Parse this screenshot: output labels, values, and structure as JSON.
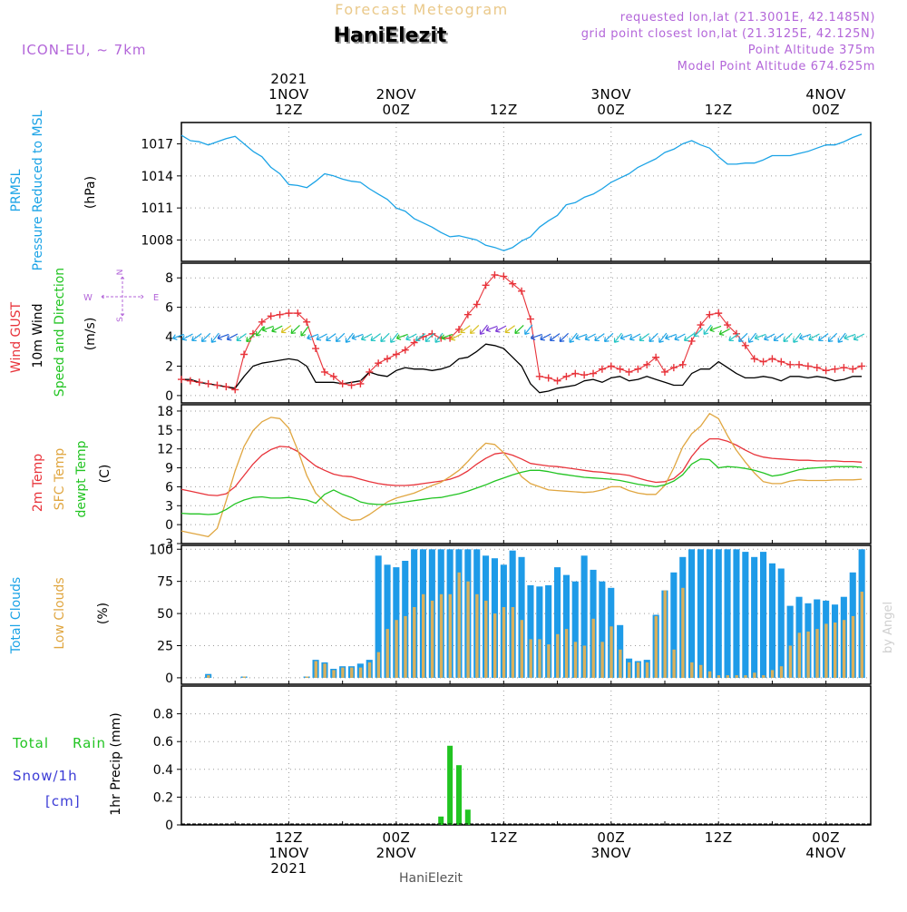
{
  "header": {
    "product_title": "Forecast Meteogram",
    "location_name": "HaniElezit",
    "model_name": "ICON-EU, ~ 7km",
    "requested_point": "requested lon,lat (21.3001E, 42.1485N)",
    "grid_point": "grid point closest lon,lat (21.3125E, 42.125N)",
    "point_altitude": "Point Altitude 375m",
    "model_altitude": "Model Point Altitude 674.625m",
    "watermark": "by Angel",
    "footer_location": "HaniElezit"
  },
  "colors": {
    "pressure": "#1ba3e6",
    "gust": "#e8333a",
    "wind": "#000000",
    "temp2m": "#e8333a",
    "sfctemp": "#e0a640",
    "dewpt": "#22c422",
    "total_cloud": "#1e9be8",
    "low_cloud": "#d9b05c",
    "rain": "#22c422",
    "snow": "#3b3bd6",
    "purple": "#b366d9"
  },
  "time_axis": {
    "top_labels": [
      {
        "t": 12,
        "lines": [
          "2021",
          "1NOV",
          "12Z"
        ]
      },
      {
        "t": 24,
        "lines": [
          "2NOV",
          "00Z"
        ]
      },
      {
        "t": 36,
        "lines": [
          "12Z"
        ]
      },
      {
        "t": 48,
        "lines": [
          "3NOV",
          "00Z"
        ]
      },
      {
        "t": 60,
        "lines": [
          "12Z"
        ]
      },
      {
        "t": 72,
        "lines": [
          "4NOV",
          "00Z"
        ]
      }
    ],
    "bottom_labels": [
      {
        "t": 12,
        "lines": [
          "12Z",
          "1NOV",
          "2021"
        ]
      },
      {
        "t": 24,
        "lines": [
          "00Z",
          "2NOV"
        ]
      },
      {
        "t": 36,
        "lines": [
          "12Z"
        ]
      },
      {
        "t": 48,
        "lines": [
          "00Z",
          "3NOV"
        ]
      },
      {
        "t": 60,
        "lines": [
          "12Z"
        ]
      },
      {
        "t": 72,
        "lines": [
          "00Z",
          "4NOV"
        ]
      }
    ]
  },
  "panels": {
    "pressure": {
      "labels": [
        {
          "text": "PRMSL",
          "color": "#1ba3e6"
        },
        {
          "text": "Pressure Reduced to MSL",
          "color": "#1ba3e6"
        },
        {
          "text": "(hPa)",
          "color": "#000000"
        }
      ]
    },
    "wind": {
      "labels": [
        {
          "text": "Wind GUST",
          "color": "#e8333a"
        },
        {
          "text": "10m Wind",
          "color": "#000000"
        },
        {
          "text": "Speed and Direction",
          "color": "#22c422"
        },
        {
          "text": "(m/s)",
          "color": "#000000"
        }
      ],
      "compass": {
        "n": "N",
        "s": "S",
        "w": "W",
        "e": "E"
      }
    },
    "temp": {
      "labels": [
        {
          "text": "2m Temp",
          "color": "#e8333a"
        },
        {
          "text": "SFC Temp",
          "color": "#e0a640"
        },
        {
          "text": "dewpt Temp",
          "color": "#22c422"
        },
        {
          "text": "(C)",
          "color": "#000000"
        }
      ]
    },
    "cloud": {
      "labels": [
        {
          "text": "Total Clouds",
          "color": "#1ba3e6"
        },
        {
          "text": "Low Clouds",
          "color": "#e0a640"
        },
        {
          "text": "(%)",
          "color": "#000000"
        }
      ]
    },
    "precip": {
      "axis_label": "1hr Precip (mm)",
      "legend_total": "Total",
      "legend_rain": "Rain",
      "legend_snow": "Snow/1h",
      "legend_unit": "[cm]"
    }
  },
  "chart_data": [
    {
      "type": "line",
      "name": "pressure",
      "x_unit": "hours after 1NOV 00Z",
      "xlim": [
        0,
        77
      ],
      "ylim": [
        1006,
        1019
      ],
      "yticks": [
        1008,
        1011,
        1014,
        1017
      ],
      "x": [
        0,
        1,
        2,
        3,
        4,
        5,
        6,
        7,
        8,
        9,
        10,
        11,
        12,
        13,
        14,
        15,
        16,
        17,
        18,
        19,
        20,
        21,
        22,
        23,
        24,
        25,
        26,
        27,
        28,
        29,
        30,
        31,
        32,
        33,
        34,
        35,
        36,
        37,
        38,
        39,
        40,
        41,
        42,
        43,
        44,
        45,
        46,
        47,
        48,
        49,
        50,
        51,
        52,
        53,
        54,
        55,
        56,
        57,
        58,
        59,
        60,
        61,
        62,
        63,
        64,
        65,
        66,
        67,
        68,
        69,
        70,
        71,
        72,
        73,
        74,
        75,
        76
      ],
      "y": [
        1017.8,
        1017.3,
        1017.2,
        1016.9,
        1017.2,
        1017.5,
        1017.7,
        1017.0,
        1016.3,
        1015.8,
        1014.8,
        1014.2,
        1013.2,
        1013.1,
        1012.9,
        1013.5,
        1014.2,
        1014.0,
        1013.7,
        1013.5,
        1013.4,
        1012.8,
        1012.3,
        1011.8,
        1011.0,
        1010.7,
        1010.0,
        1009.6,
        1009.2,
        1008.7,
        1008.3,
        1008.4,
        1008.2,
        1008.0,
        1007.5,
        1007.3,
        1007.0,
        1007.3,
        1007.9,
        1008.3,
        1009.2,
        1009.8,
        1010.3,
        1011.3,
        1011.5,
        1012.0,
        1012.3,
        1012.8,
        1013.4,
        1013.8,
        1014.2,
        1014.8,
        1015.2,
        1015.6,
        1016.2,
        1016.5,
        1017.0,
        1017.3,
        1016.9,
        1016.6,
        1015.8,
        1015.1,
        1015.1,
        1015.2,
        1015.2,
        1015.5,
        1015.9,
        1015.9,
        1015.9,
        1016.1,
        1016.3,
        1016.6,
        1016.9,
        1016.9,
        1017.2,
        1017.6,
        1017.9
      ]
    },
    {
      "type": "line",
      "name": "wind",
      "xlim": [
        0,
        77
      ],
      "ylim": [
        -0.5,
        9
      ],
      "yticks": [
        0,
        2,
        4,
        6,
        8
      ],
      "x": [
        0,
        1,
        2,
        3,
        4,
        5,
        6,
        7,
        8,
        9,
        10,
        11,
        12,
        13,
        14,
        15,
        16,
        17,
        18,
        19,
        20,
        21,
        22,
        23,
        24,
        25,
        26,
        27,
        28,
        29,
        30,
        31,
        32,
        33,
        34,
        35,
        36,
        37,
        38,
        39,
        40,
        41,
        42,
        43,
        44,
        45,
        46,
        47,
        48,
        49,
        50,
        51,
        52,
        53,
        54,
        55,
        56,
        57,
        58,
        59,
        60,
        61,
        62,
        63,
        64,
        65,
        66,
        67,
        68,
        69,
        70,
        71,
        72,
        73,
        74,
        75,
        76
      ],
      "series": [
        {
          "name": "Wind GUST",
          "values": [
            1.1,
            1.0,
            0.9,
            0.8,
            0.7,
            0.6,
            0.4,
            2.8,
            4.2,
            5.0,
            5.4,
            5.5,
            5.6,
            5.6,
            5.0,
            3.2,
            1.6,
            1.3,
            0.8,
            0.7,
            0.8,
            1.6,
            2.2,
            2.5,
            2.8,
            3.1,
            3.6,
            4.0,
            4.2,
            3.9,
            3.9,
            4.5,
            5.5,
            6.2,
            7.5,
            8.2,
            8.1,
            7.6,
            7.1,
            5.2,
            1.3,
            1.2,
            1.0,
            1.3,
            1.5,
            1.4,
            1.5,
            1.8,
            2.0,
            1.8,
            1.6,
            1.8,
            2.1,
            2.6,
            1.6,
            1.9,
            2.1,
            3.7,
            4.8,
            5.5,
            5.6,
            4.8,
            4.2,
            3.4,
            2.5,
            2.3,
            2.5,
            2.3,
            2.1,
            2.1,
            2.0,
            1.9,
            1.7,
            1.8,
            1.9,
            1.8,
            2.0
          ]
        },
        {
          "name": "10m Wind",
          "values": [
            1.1,
            1.1,
            0.9,
            0.8,
            0.7,
            0.6,
            0.5,
            1.3,
            2.0,
            2.2,
            2.3,
            2.4,
            2.5,
            2.4,
            2.0,
            0.9,
            0.9,
            0.9,
            0.8,
            0.9,
            1.0,
            1.6,
            1.4,
            1.3,
            1.7,
            1.9,
            1.8,
            1.8,
            1.7,
            1.8,
            2.0,
            2.5,
            2.6,
            3.0,
            3.5,
            3.4,
            3.2,
            2.6,
            2.0,
            0.8,
            0.2,
            0.3,
            0.5,
            0.6,
            0.7,
            1.0,
            1.1,
            0.9,
            1.2,
            1.3,
            1.0,
            1.1,
            1.3,
            1.1,
            0.9,
            0.7,
            0.7,
            1.5,
            1.8,
            1.8,
            2.3,
            1.9,
            1.5,
            1.2,
            1.2,
            1.3,
            1.2,
            1.0,
            1.3,
            1.3,
            1.2,
            1.3,
            1.2,
            1.0,
            1.1,
            1.3,
            1.3
          ]
        }
      ]
    },
    {
      "type": "line",
      "name": "temperature",
      "xlim": [
        0,
        77
      ],
      "ylim": [
        -3,
        19
      ],
      "yticks": [
        -3,
        0,
        3,
        6,
        9,
        12,
        15,
        18
      ],
      "x": [
        0,
        1,
        2,
        3,
        4,
        5,
        6,
        7,
        8,
        9,
        10,
        11,
        12,
        13,
        14,
        15,
        16,
        17,
        18,
        19,
        20,
        21,
        22,
        23,
        24,
        25,
        26,
        27,
        28,
        29,
        30,
        31,
        32,
        33,
        34,
        35,
        36,
        37,
        38,
        39,
        40,
        41,
        42,
        43,
        44,
        45,
        46,
        47,
        48,
        49,
        50,
        51,
        52,
        53,
        54,
        55,
        56,
        57,
        58,
        59,
        60,
        61,
        62,
        63,
        64,
        65,
        66,
        67,
        68,
        69,
        70,
        71,
        72,
        73,
        74,
        75,
        76
      ],
      "series": [
        {
          "name": "2m Temp",
          "values": [
            5.6,
            5.3,
            5.0,
            4.7,
            4.6,
            4.9,
            6.0,
            7.8,
            9.6,
            11.0,
            11.9,
            12.4,
            12.3,
            11.6,
            10.4,
            9.3,
            8.6,
            8.0,
            7.7,
            7.6,
            7.2,
            6.8,
            6.5,
            6.3,
            6.2,
            6.2,
            6.3,
            6.5,
            6.7,
            6.9,
            7.2,
            7.7,
            8.5,
            9.6,
            10.5,
            11.2,
            11.4,
            11.0,
            10.4,
            9.7,
            9.5,
            9.3,
            9.2,
            9.0,
            8.8,
            8.6,
            8.4,
            8.3,
            8.1,
            8.0,
            7.8,
            7.4,
            7.0,
            6.7,
            6.8,
            7.3,
            8.5,
            10.8,
            12.5,
            13.6,
            13.6,
            13.2,
            12.6,
            11.8,
            11.1,
            10.7,
            10.5,
            10.4,
            10.3,
            10.2,
            10.2,
            10.1,
            10.1,
            10.1,
            10.0,
            10.0,
            9.9
          ]
        },
        {
          "name": "SFC Temp",
          "values": [
            -1.0,
            -1.3,
            -1.6,
            -1.9,
            -0.6,
            3.8,
            8.5,
            12.4,
            14.9,
            16.3,
            17.0,
            16.8,
            15.3,
            11.8,
            7.8,
            5.0,
            3.6,
            2.4,
            1.3,
            0.7,
            0.8,
            1.6,
            2.6,
            3.6,
            4.2,
            4.6,
            5.0,
            5.6,
            6.2,
            6.7,
            7.6,
            8.6,
            10.0,
            11.6,
            12.9,
            12.7,
            11.4,
            9.6,
            7.6,
            6.5,
            6.0,
            5.5,
            5.4,
            5.3,
            5.2,
            5.1,
            5.2,
            5.5,
            6.0,
            6.0,
            5.4,
            5.0,
            4.8,
            4.8,
            6.2,
            9.0,
            12.3,
            14.4,
            15.6,
            17.6,
            16.8,
            14.1,
            11.8,
            9.9,
            8.2,
            6.8,
            6.5,
            6.5,
            6.9,
            7.1,
            7.0,
            7.0,
            7.0,
            7.1,
            7.1,
            7.1,
            7.2
          ]
        },
        {
          "name": "dewpt Temp",
          "values": [
            1.8,
            1.7,
            1.7,
            1.6,
            1.7,
            2.4,
            3.3,
            3.9,
            4.3,
            4.4,
            4.2,
            4.2,
            4.3,
            4.1,
            3.9,
            3.4,
            4.8,
            5.5,
            4.8,
            4.3,
            3.6,
            3.3,
            3.2,
            3.2,
            3.4,
            3.6,
            3.8,
            4.0,
            4.2,
            4.3,
            4.6,
            4.9,
            5.3,
            5.8,
            6.3,
            6.9,
            7.4,
            7.9,
            8.3,
            8.6,
            8.6,
            8.4,
            8.1,
            7.9,
            7.7,
            7.5,
            7.4,
            7.3,
            7.2,
            7.0,
            6.7,
            6.4,
            6.2,
            6.0,
            6.3,
            6.9,
            7.9,
            9.6,
            10.4,
            10.3,
            9.0,
            9.2,
            9.1,
            8.9,
            8.6,
            8.2,
            7.7,
            7.9,
            8.3,
            8.7,
            8.9,
            9.0,
            9.1,
            9.2,
            9.2,
            9.2,
            9.1
          ]
        }
      ]
    },
    {
      "type": "bar",
      "name": "clouds",
      "xlim": [
        0,
        77
      ],
      "ylim": [
        -5,
        103
      ],
      "yticks": [
        0,
        25,
        50,
        75,
        100
      ],
      "x": [
        0,
        1,
        2,
        3,
        4,
        5,
        6,
        7,
        8,
        9,
        10,
        11,
        12,
        13,
        14,
        15,
        16,
        17,
        18,
        19,
        20,
        21,
        22,
        23,
        24,
        25,
        26,
        27,
        28,
        29,
        30,
        31,
        32,
        33,
        34,
        35,
        36,
        37,
        38,
        39,
        40,
        41,
        42,
        43,
        44,
        45,
        46,
        47,
        48,
        49,
        50,
        51,
        52,
        53,
        54,
        55,
        56,
        57,
        58,
        59,
        60,
        61,
        62,
        63,
        64,
        65,
        66,
        67,
        68,
        69,
        70,
        71,
        72,
        73,
        74,
        75,
        76
      ],
      "series": [
        {
          "name": "Total Clouds",
          "values": [
            0,
            0,
            0,
            3,
            0,
            0,
            0,
            1,
            0,
            0,
            0,
            0,
            0,
            0,
            1,
            14,
            12,
            7,
            9,
            9,
            11,
            14,
            95,
            88,
            86,
            91,
            100,
            100,
            100,
            100,
            100,
            100,
            100,
            100,
            95,
            93,
            88,
            99,
            94,
            72,
            71,
            72,
            86,
            80,
            75,
            95,
            84,
            75,
            70,
            41,
            15,
            13,
            14,
            49,
            68,
            82,
            94,
            100,
            100,
            100,
            100,
            100,
            100,
            98,
            94,
            98,
            89,
            85,
            56,
            63,
            58,
            61,
            60,
            57,
            63,
            82,
            100
          ]
        },
        {
          "name": "Low Clouds",
          "values": [
            0,
            0,
            0,
            2,
            0,
            0,
            0,
            1,
            0,
            0,
            0,
            0,
            0,
            0,
            1,
            13,
            11,
            6,
            8,
            8,
            8,
            12,
            20,
            38,
            45,
            48,
            55,
            65,
            60,
            65,
            65,
            82,
            75,
            65,
            60,
            50,
            55,
            55,
            45,
            30,
            30,
            26,
            34,
            38,
            28,
            25,
            46,
            28,
            40,
            22,
            12,
            12,
            12,
            48,
            68,
            22,
            70,
            12,
            10,
            5,
            2,
            2,
            2,
            2,
            4,
            2,
            6,
            9,
            25,
            35,
            36,
            38,
            42,
            43,
            45,
            48,
            67
          ]
        }
      ]
    },
    {
      "type": "bar",
      "name": "precipitation",
      "xlim": [
        0,
        77
      ],
      "ylim": [
        0,
        1.0
      ],
      "yticks": [
        0,
        0.2,
        0.4,
        0.6,
        0.8
      ],
      "series": [
        {
          "name": "Total Rain",
          "x": [
            29,
            30,
            31,
            32
          ],
          "values": [
            0.06,
            0.57,
            0.43,
            0.11
          ]
        }
      ]
    }
  ]
}
